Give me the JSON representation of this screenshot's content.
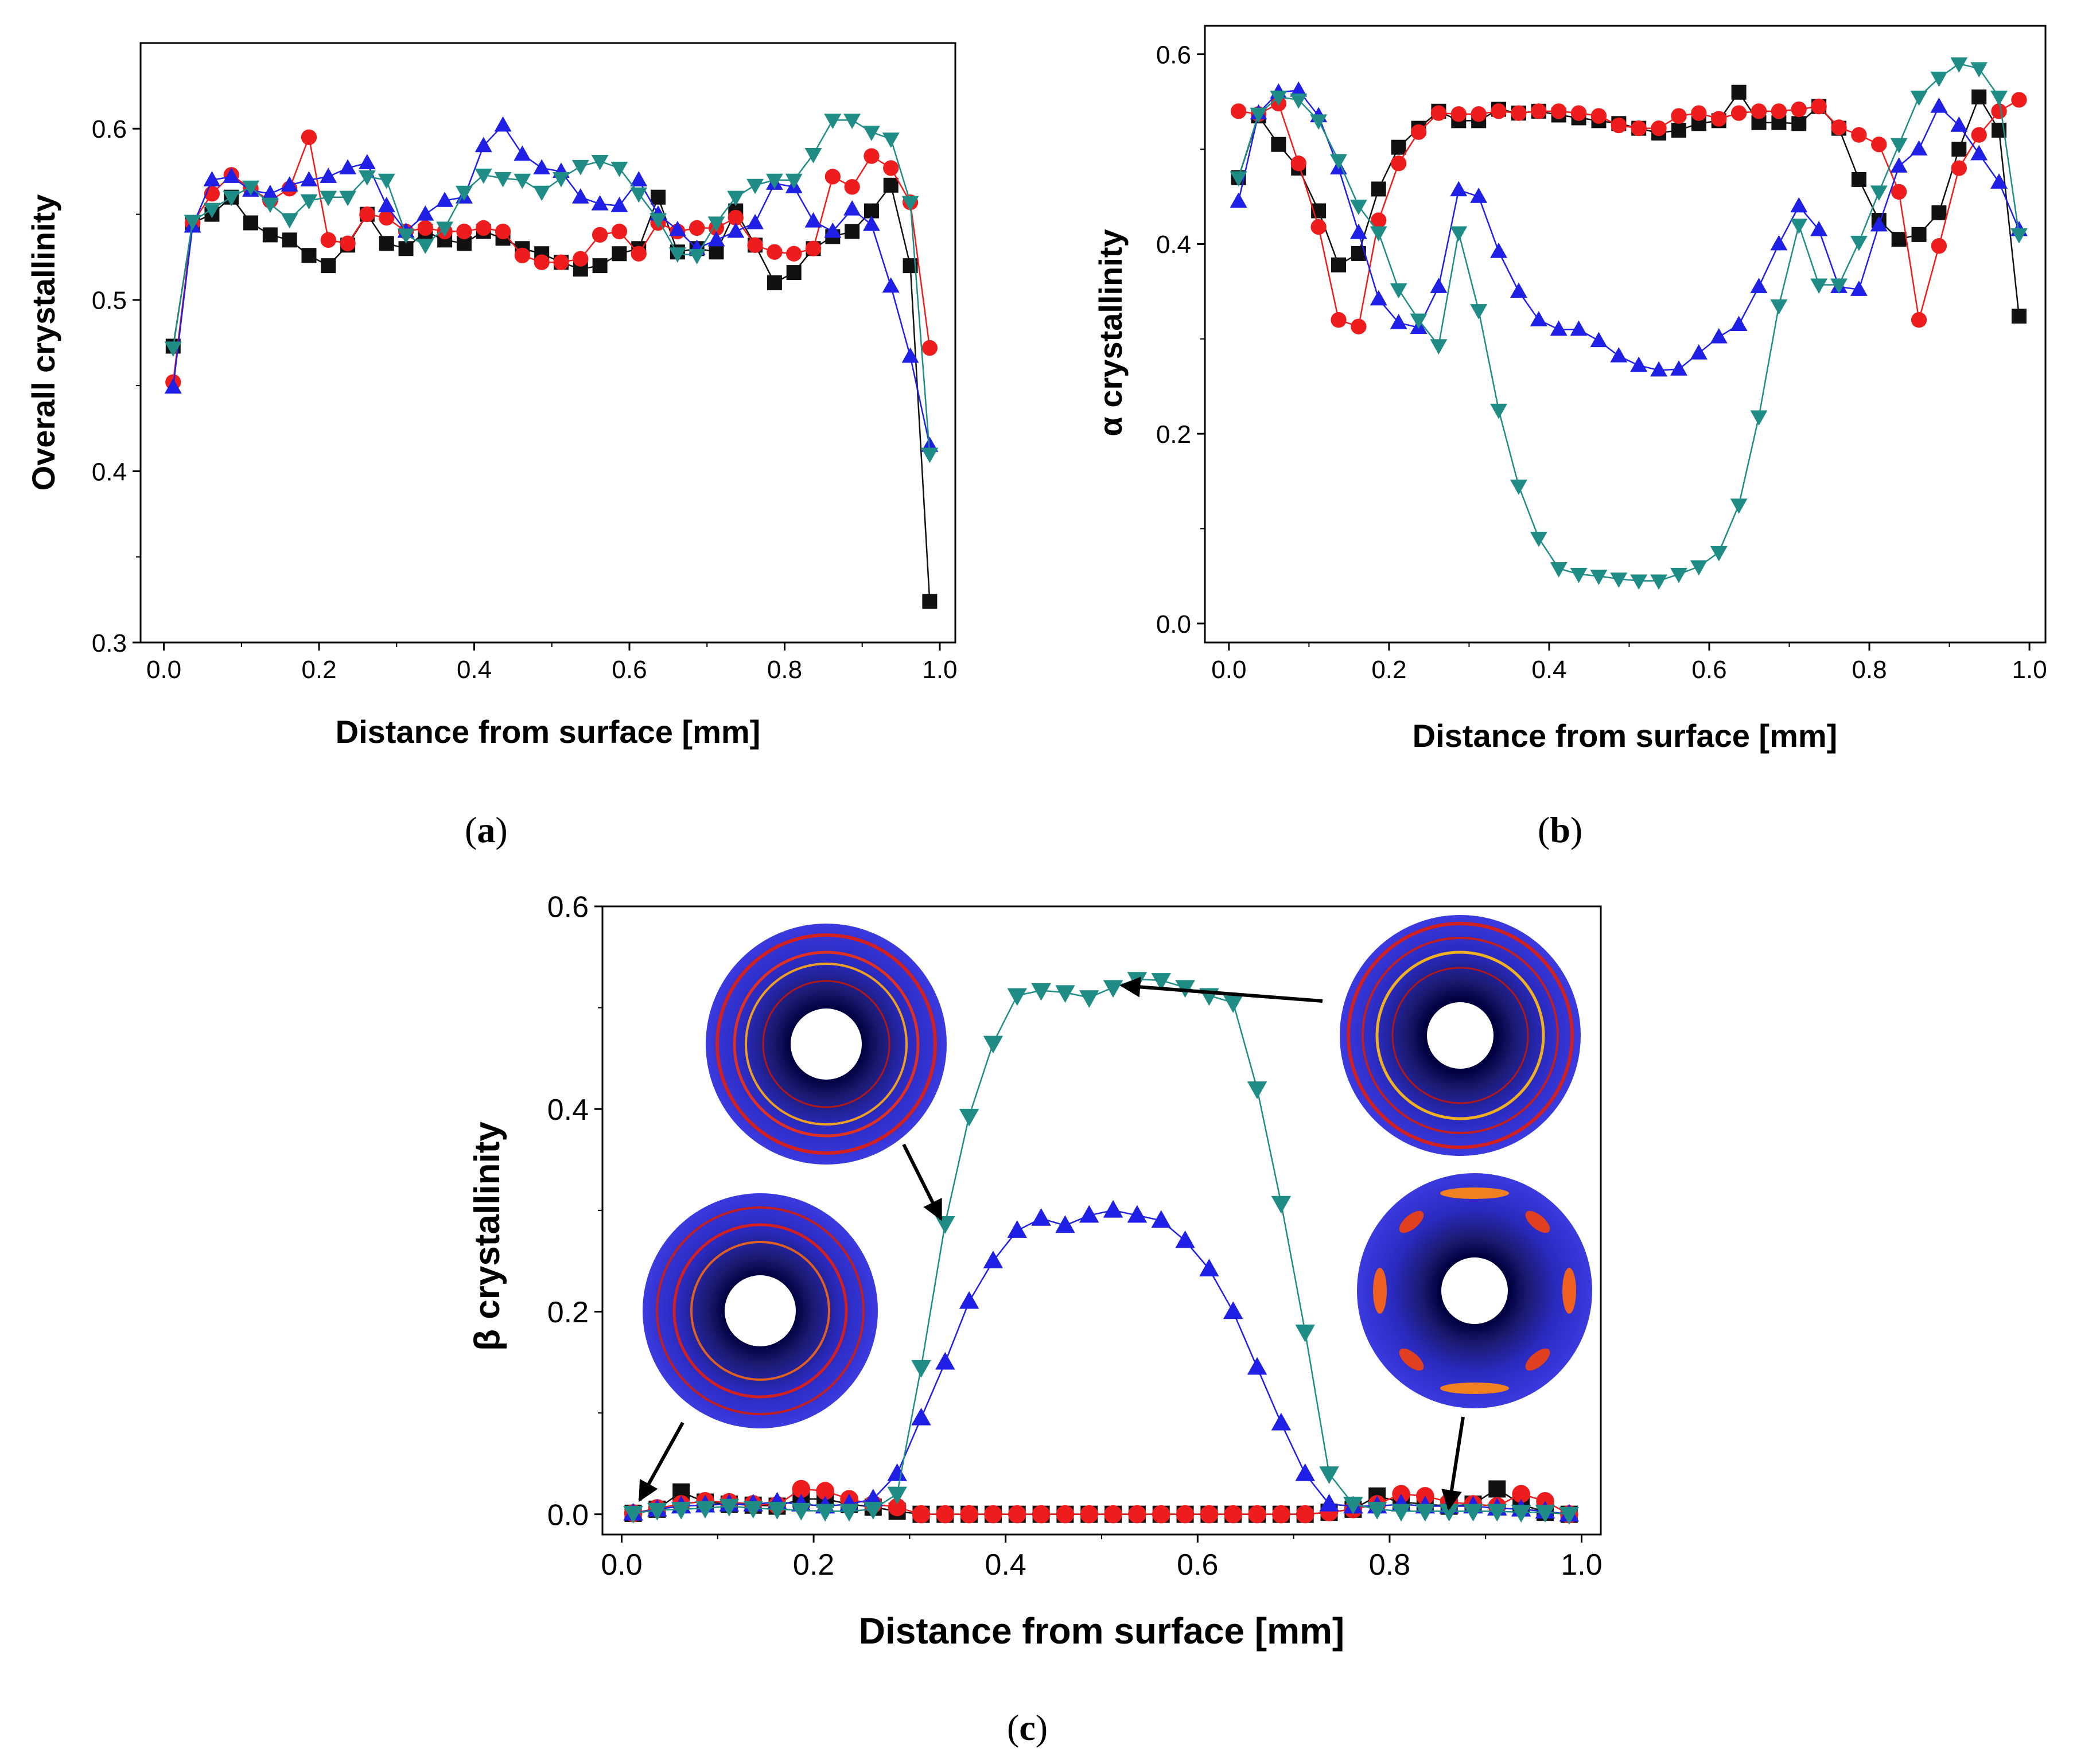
{
  "colors": {
    "black": "#111111",
    "red": "#ee1c1c",
    "blue": "#1f1fe6",
    "teal": "#1f8c86"
  },
  "captions": [
    {
      "letter": "a"
    },
    {
      "letter": "b"
    },
    {
      "letter": "c"
    }
  ],
  "chart_data": [
    {
      "type": "line",
      "marker_lines": true,
      "xlabel": "Distance from surface [mm]",
      "ylabel": "Overall crystallinity",
      "xlim": [
        -0.03,
        1.02
      ],
      "ylim": [
        0.3,
        0.65
      ],
      "xticks": [
        "0.0",
        "0.2",
        "0.4",
        "0.6",
        "0.8",
        "1.0"
      ],
      "yticks": [
        "0.3",
        "0.4",
        "0.5",
        "0.6"
      ],
      "x": [
        0.012,
        0.037,
        0.062,
        0.087,
        0.112,
        0.137,
        0.162,
        0.187,
        0.212,
        0.237,
        0.262,
        0.287,
        0.312,
        0.337,
        0.362,
        0.387,
        0.412,
        0.437,
        0.462,
        0.487,
        0.512,
        0.537,
        0.562,
        0.587,
        0.612,
        0.637,
        0.662,
        0.687,
        0.712,
        0.737,
        0.762,
        0.787,
        0.812,
        0.837,
        0.862,
        0.887,
        0.912,
        0.937,
        0.962,
        0.987
      ],
      "series": [
        {
          "marker": "square",
          "color": "#111111",
          "values": [
            0.473,
            0.545,
            0.55,
            0.56,
            0.545,
            0.538,
            0.535,
            0.526,
            0.52,
            0.532,
            0.55,
            0.533,
            0.53,
            0.54,
            0.535,
            0.533,
            0.54,
            0.536,
            0.53,
            0.527,
            0.522,
            0.518,
            0.52,
            0.527,
            0.53,
            0.56,
            0.528,
            0.53,
            0.528,
            0.552,
            0.532,
            0.51,
            0.516,
            0.53,
            0.537,
            0.54,
            0.552,
            0.567,
            0.52,
            0.324
          ]
        },
        {
          "marker": "circle",
          "color": "#ee1c1c",
          "values": [
            0.452,
            0.545,
            0.562,
            0.573,
            0.565,
            0.558,
            0.565,
            0.595,
            0.535,
            0.533,
            0.55,
            0.548,
            0.54,
            0.542,
            0.54,
            0.54,
            0.542,
            0.54,
            0.526,
            0.522,
            0.522,
            0.524,
            0.538,
            0.54,
            0.527,
            0.545,
            0.54,
            0.542,
            0.542,
            0.548,
            0.532,
            0.528,
            0.527,
            0.53,
            0.572,
            0.566,
            0.584,
            0.577,
            0.557,
            0.472
          ]
        },
        {
          "marker": "triangle-up",
          "color": "#1f1fe6",
          "values": [
            0.449,
            0.543,
            0.57,
            0.572,
            0.564,
            0.562,
            0.567,
            0.57,
            0.572,
            0.577,
            0.58,
            0.555,
            0.54,
            0.55,
            0.558,
            0.56,
            0.59,
            0.602,
            0.585,
            0.577,
            0.575,
            0.56,
            0.556,
            0.555,
            0.57,
            0.55,
            0.541,
            0.53,
            0.535,
            0.54,
            0.545,
            0.568,
            0.566,
            0.546,
            0.54,
            0.553,
            0.544,
            0.508,
            0.467,
            0.415
          ]
        },
        {
          "marker": "triangle-down",
          "color": "#1f8c86",
          "values": [
            0.472,
            0.546,
            0.553,
            0.56,
            0.566,
            0.556,
            0.547,
            0.558,
            0.56,
            0.56,
            0.572,
            0.57,
            0.538,
            0.532,
            0.542,
            0.563,
            0.573,
            0.571,
            0.57,
            0.563,
            0.571,
            0.578,
            0.581,
            0.577,
            0.562,
            0.547,
            0.527,
            0.526,
            0.545,
            0.56,
            0.567,
            0.57,
            0.57,
            0.585,
            0.605,
            0.605,
            0.598,
            0.594,
            0.557,
            0.41
          ]
        }
      ]
    },
    {
      "type": "line",
      "marker_lines": true,
      "xlabel": "Distance from surface [mm]",
      "ylabel": "α crystallinity",
      "xlim": [
        -0.03,
        1.02
      ],
      "ylim": [
        -0.02,
        0.63
      ],
      "xticks": [
        "0.0",
        "0.2",
        "0.4",
        "0.6",
        "0.8",
        "1.0"
      ],
      "yticks": [
        "0.0",
        "0.2",
        "0.4",
        "0.6"
      ],
      "x": [
        0.012,
        0.037,
        0.062,
        0.087,
        0.112,
        0.137,
        0.162,
        0.187,
        0.212,
        0.237,
        0.262,
        0.287,
        0.312,
        0.337,
        0.362,
        0.387,
        0.412,
        0.437,
        0.462,
        0.487,
        0.512,
        0.537,
        0.562,
        0.587,
        0.612,
        0.637,
        0.662,
        0.687,
        0.712,
        0.737,
        0.762,
        0.787,
        0.812,
        0.837,
        0.862,
        0.887,
        0.912,
        0.937,
        0.962,
        0.987
      ],
      "series": [
        {
          "marker": "square",
          "color": "#111111",
          "values": [
            0.47,
            0.535,
            0.505,
            0.48,
            0.435,
            0.378,
            0.39,
            0.458,
            0.502,
            0.522,
            0.54,
            0.53,
            0.53,
            0.542,
            0.538,
            0.54,
            0.536,
            0.533,
            0.53,
            0.527,
            0.522,
            0.517,
            0.52,
            0.527,
            0.53,
            0.56,
            0.528,
            0.528,
            0.527,
            0.545,
            0.522,
            0.468,
            0.425,
            0.405,
            0.41,
            0.433,
            0.5,
            0.555,
            0.52,
            0.324
          ]
        },
        {
          "marker": "circle",
          "color": "#ee1c1c",
          "values": [
            0.54,
            0.537,
            0.548,
            0.485,
            0.418,
            0.32,
            0.313,
            0.425,
            0.485,
            0.518,
            0.538,
            0.537,
            0.537,
            0.54,
            0.538,
            0.54,
            0.54,
            0.538,
            0.535,
            0.525,
            0.522,
            0.522,
            0.535,
            0.538,
            0.532,
            0.538,
            0.54,
            0.54,
            0.542,
            0.545,
            0.523,
            0.515,
            0.505,
            0.455,
            0.32,
            0.398,
            0.48,
            0.515,
            0.54,
            0.552
          ]
        },
        {
          "marker": "triangle-up",
          "color": "#1f1fe6",
          "values": [
            0.445,
            0.538,
            0.56,
            0.562,
            0.535,
            0.48,
            0.412,
            0.342,
            0.317,
            0.312,
            0.355,
            0.457,
            0.45,
            0.392,
            0.35,
            0.32,
            0.31,
            0.31,
            0.298,
            0.282,
            0.272,
            0.267,
            0.268,
            0.285,
            0.302,
            0.315,
            0.355,
            0.4,
            0.44,
            0.415,
            0.355,
            0.352,
            0.42,
            0.482,
            0.5,
            0.545,
            0.525,
            0.495,
            0.465,
            0.415
          ]
        },
        {
          "marker": "triangle-down",
          "color": "#1f8c86",
          "values": [
            0.47,
            0.537,
            0.555,
            0.552,
            0.53,
            0.488,
            0.44,
            0.412,
            0.352,
            0.32,
            0.293,
            0.412,
            0.33,
            0.225,
            0.145,
            0.09,
            0.058,
            0.052,
            0.05,
            0.047,
            0.045,
            0.045,
            0.052,
            0.06,
            0.075,
            0.125,
            0.218,
            0.335,
            0.42,
            0.357,
            0.357,
            0.402,
            0.455,
            0.505,
            0.555,
            0.575,
            0.59,
            0.585,
            0.555,
            0.41
          ]
        }
      ]
    },
    {
      "type": "line",
      "marker_lines": true,
      "xlabel": "Distance from surface [mm]",
      "ylabel": "β crystallinity",
      "xlim": [
        -0.02,
        1.02
      ],
      "ylim": [
        -0.02,
        0.6
      ],
      "xticks": [
        "0.0",
        "0.2",
        "0.4",
        "0.6",
        "0.8",
        "1.0"
      ],
      "yticks": [
        "0.0",
        "0.2",
        "0.4",
        "0.6"
      ],
      "x": [
        0.012,
        0.037,
        0.062,
        0.087,
        0.112,
        0.137,
        0.162,
        0.187,
        0.212,
        0.237,
        0.262,
        0.287,
        0.312,
        0.337,
        0.362,
        0.387,
        0.412,
        0.437,
        0.462,
        0.487,
        0.512,
        0.537,
        0.562,
        0.587,
        0.612,
        0.637,
        0.662,
        0.687,
        0.712,
        0.737,
        0.762,
        0.787,
        0.812,
        0.837,
        0.862,
        0.887,
        0.912,
        0.937,
        0.962,
        0.987
      ],
      "series": [
        {
          "marker": "square",
          "color": "#111111",
          "values": [
            0.001,
            0.005,
            0.022,
            0.012,
            0.01,
            0.009,
            0.008,
            0.015,
            0.015,
            0.01,
            0.007,
            0.003,
            0.0,
            0.0,
            0.0,
            0.0,
            0.0,
            0.0,
            0.0,
            0.0,
            0.0,
            0.0,
            0.0,
            0.0,
            0.0,
            0.0,
            0.0,
            0.0,
            0.0,
            0.002,
            0.005,
            0.018,
            0.012,
            0.01,
            0.008,
            0.01,
            0.025,
            0.01,
            0.002,
            0.0
          ]
        },
        {
          "marker": "circle",
          "color": "#ee1c1c",
          "values": [
            0.001,
            0.006,
            0.01,
            0.013,
            0.012,
            0.01,
            0.009,
            0.025,
            0.023,
            0.015,
            0.01,
            0.007,
            0.0,
            0.0,
            0.0,
            0.0,
            0.0,
            0.0,
            0.0,
            0.0,
            0.0,
            0.0,
            0.0,
            0.0,
            0.0,
            0.0,
            0.0,
            0.0,
            0.0,
            0.002,
            0.005,
            0.01,
            0.02,
            0.018,
            0.012,
            0.01,
            0.008,
            0.02,
            0.013,
            0.0
          ]
        },
        {
          "marker": "triangle-up",
          "color": "#1f1fe6",
          "values": [
            0.001,
            0.005,
            0.008,
            0.009,
            0.01,
            0.01,
            0.012,
            0.01,
            0.008,
            0.01,
            0.015,
            0.04,
            0.095,
            0.15,
            0.21,
            0.25,
            0.28,
            0.292,
            0.285,
            0.295,
            0.3,
            0.295,
            0.29,
            0.27,
            0.242,
            0.2,
            0.145,
            0.09,
            0.04,
            0.01,
            0.008,
            0.008,
            0.01,
            0.008,
            0.008,
            0.008,
            0.006,
            0.005,
            0.003,
            0.0
          ]
        },
        {
          "marker": "triangle-down",
          "color": "#1f8c86",
          "values": [
            0.001,
            0.004,
            0.005,
            0.006,
            0.008,
            0.006,
            0.005,
            0.004,
            0.003,
            0.003,
            0.005,
            0.02,
            0.145,
            0.287,
            0.393,
            0.465,
            0.512,
            0.517,
            0.515,
            0.51,
            0.52,
            0.528,
            0.527,
            0.52,
            0.512,
            0.505,
            0.42,
            0.307,
            0.18,
            0.04,
            0.01,
            0.005,
            0.003,
            0.003,
            0.003,
            0.003,
            0.003,
            0.002,
            0.002,
            0.0
          ]
        }
      ]
    }
  ]
}
